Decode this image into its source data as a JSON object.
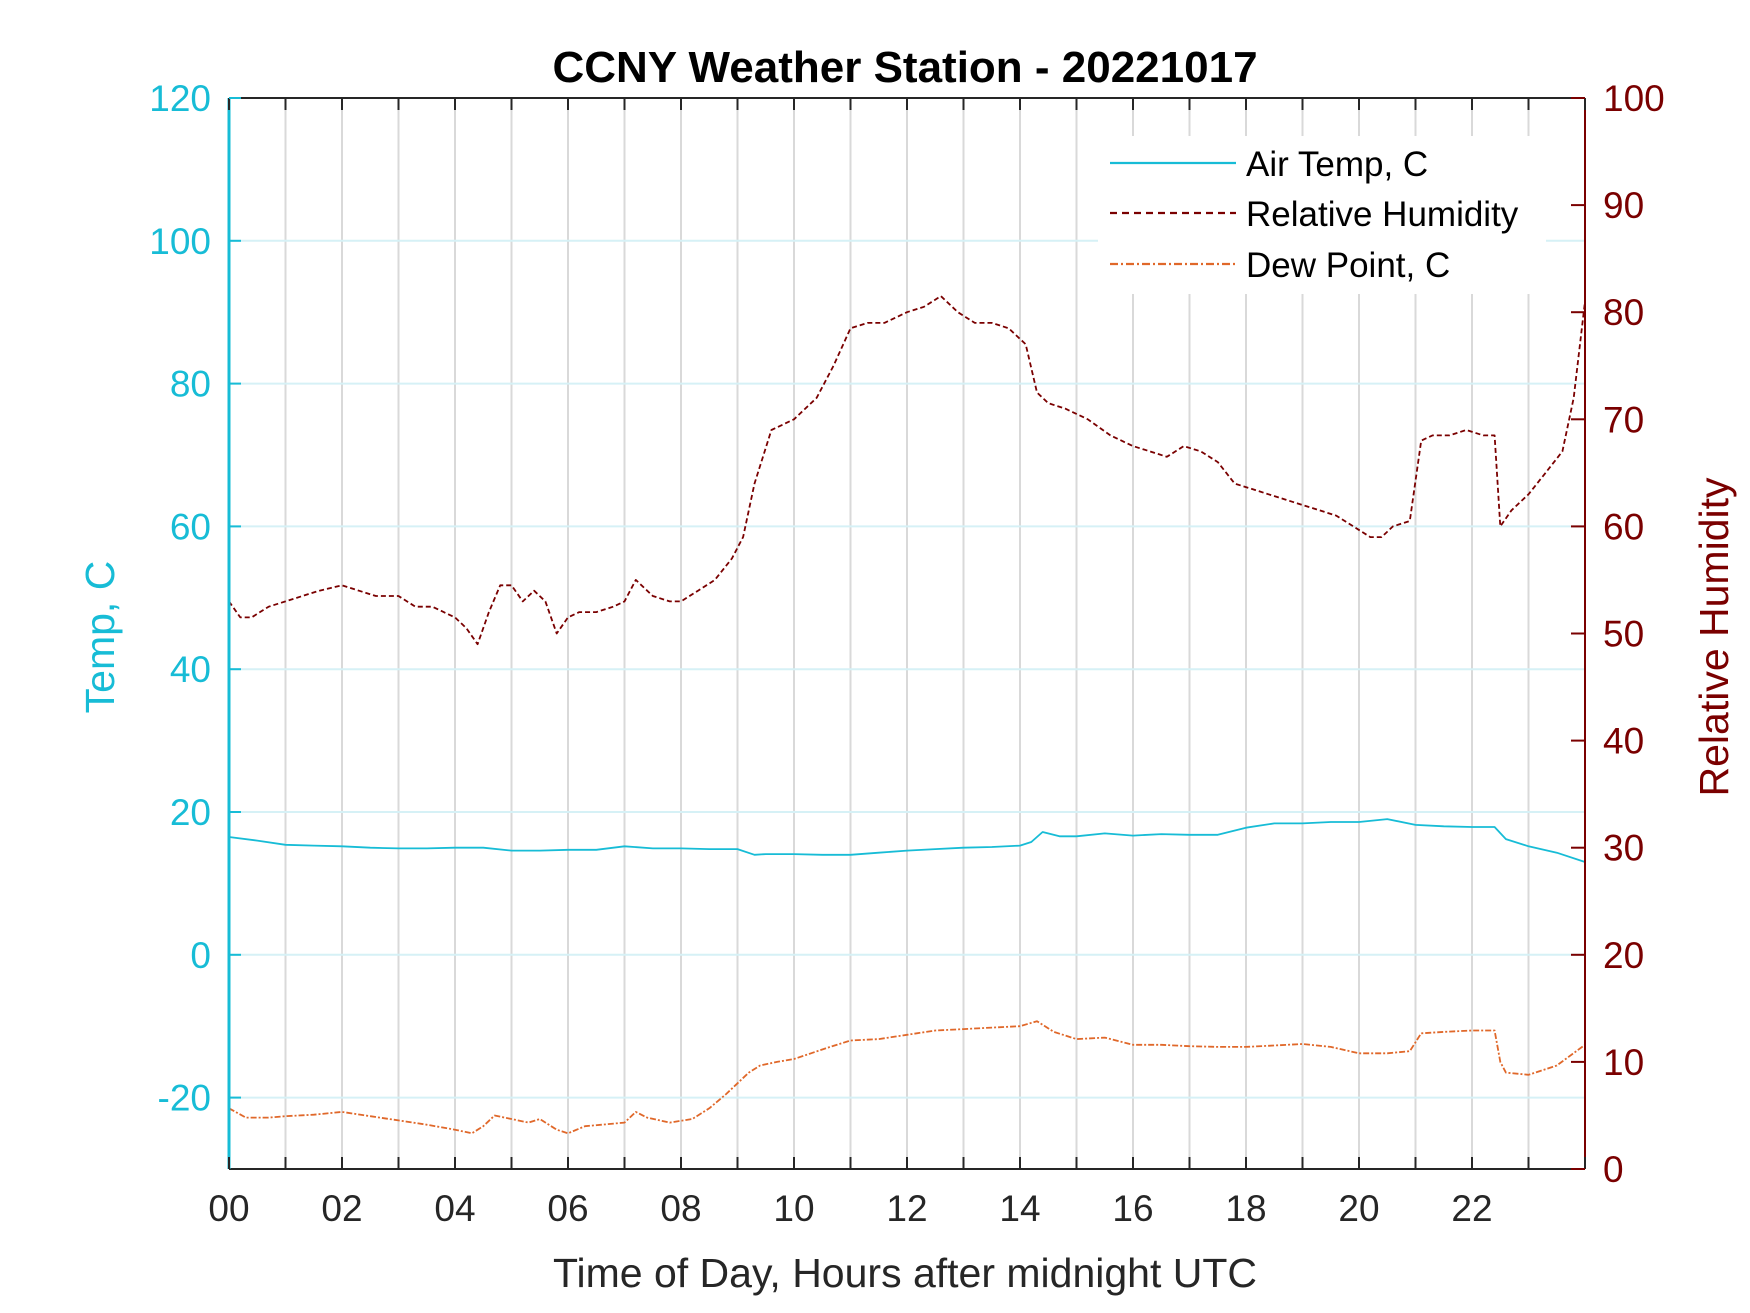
{
  "chart_data": {
    "type": "line",
    "title": "CCNY Weather Station - 20221017",
    "xlabel": "Time of Day, Hours after midnight UTC",
    "ylabel_left": "Temp, C",
    "ylabel_right": "Relative Humidity",
    "xlim": [
      0,
      24
    ],
    "ylim_left": [
      -30,
      120
    ],
    "ylim_right": [
      0,
      100
    ],
    "x_ticks": [
      "00",
      "02",
      "04",
      "06",
      "08",
      "10",
      "12",
      "14",
      "16",
      "18",
      "20",
      "22"
    ],
    "y_left_ticks": [
      "-20",
      "0",
      "20",
      "40",
      "60",
      "80",
      "100",
      "120"
    ],
    "y_right_ticks": [
      "0",
      "10",
      "20",
      "30",
      "40",
      "50",
      "60",
      "70",
      "80",
      "90",
      "100"
    ],
    "grid": "vertical lines every hour, horizontal lines at left-axis ticks",
    "legend_position": "top-right",
    "colors": {
      "air_temp": "#17bcd6",
      "relative_humidity": "#7a0000",
      "dew_point": "#e0682a",
      "right_axis": "#7a0000",
      "left_axis": "#17bcd6"
    },
    "series": [
      {
        "name": "Air Temp, C",
        "axis": "left",
        "style": "solid",
        "x": [
          0,
          0.5,
          1,
          1.5,
          2,
          2.5,
          3,
          3.5,
          4,
          4.5,
          5,
          5.5,
          6,
          6.5,
          7,
          7.5,
          8,
          8.5,
          9,
          9.3,
          9.5,
          10,
          10.5,
          11,
          11.5,
          12,
          12.5,
          13,
          13.5,
          14,
          14.2,
          14.4,
          14.7,
          15,
          15.5,
          16,
          16.5,
          17,
          17.5,
          18,
          18.5,
          19,
          19.5,
          20,
          20.5,
          21,
          21.5,
          22,
          22.4,
          22.6,
          23,
          23.5,
          24
        ],
        "y": [
          16.5,
          16.0,
          15.4,
          15.3,
          15.2,
          15.0,
          14.9,
          14.9,
          15.0,
          15.0,
          14.6,
          14.6,
          14.7,
          14.7,
          15.2,
          14.9,
          14.9,
          14.8,
          14.8,
          14.0,
          14.1,
          14.1,
          14.0,
          14.0,
          14.3,
          14.6,
          14.8,
          15.0,
          15.1,
          15.3,
          15.8,
          17.2,
          16.6,
          16.6,
          17.0,
          16.7,
          16.9,
          16.8,
          16.8,
          17.8,
          18.4,
          18.4,
          18.6,
          18.6,
          19.0,
          18.2,
          18.0,
          17.9,
          17.9,
          16.2,
          15.2,
          14.3,
          13.0
        ]
      },
      {
        "name": "Relative Humidity",
        "axis": "right",
        "style": "dashed",
        "x": [
          0,
          0.2,
          0.4,
          0.7,
          1,
          1.3,
          1.6,
          2,
          2.3,
          2.6,
          3,
          3.3,
          3.6,
          3.8,
          4,
          4.2,
          4.4,
          4.6,
          4.8,
          5,
          5.2,
          5.4,
          5.6,
          5.8,
          6,
          6.2,
          6.5,
          6.8,
          7,
          7.2,
          7.5,
          7.8,
          8,
          8.3,
          8.6,
          8.9,
          9.1,
          9.3,
          9.6,
          10,
          10.4,
          10.7,
          11,
          11.3,
          11.6,
          12,
          12.3,
          12.6,
          12.9,
          13.2,
          13.5,
          13.8,
          14.1,
          14.3,
          14.5,
          14.8,
          15.2,
          15.6,
          16,
          16.3,
          16.6,
          16.9,
          17.2,
          17.5,
          17.8,
          18.1,
          18.4,
          18.7,
          19,
          19.3,
          19.6,
          19.9,
          20.2,
          20.4,
          20.6,
          20.9,
          21.1,
          21.3,
          21.6,
          21.9,
          22.2,
          22.4,
          22.5,
          22.7,
          23,
          23.3,
          23.6,
          23.8,
          24
        ],
        "y": [
          53,
          51.5,
          51.5,
          52.5,
          53,
          53.5,
          54,
          54.5,
          54,
          53.5,
          53.5,
          52.5,
          52.5,
          52,
          51.5,
          50.5,
          49,
          52,
          54.5,
          54.5,
          53,
          54,
          53,
          50,
          51.5,
          52,
          52,
          52.5,
          53,
          55,
          53.5,
          53,
          53,
          54,
          55,
          57,
          59,
          64,
          69,
          70,
          72,
          75,
          78.5,
          79,
          79,
          80,
          80.5,
          81.5,
          80,
          79,
          79,
          78.5,
          77,
          72.5,
          71.5,
          71,
          70,
          68.5,
          67.5,
          67,
          66.5,
          67.5,
          67,
          66,
          64,
          63.5,
          63,
          62.5,
          62,
          61.5,
          61,
          60,
          59,
          59,
          60,
          60.5,
          68,
          68.5,
          68.5,
          69,
          68.5,
          68.5,
          60,
          61.5,
          63,
          65,
          67,
          72,
          81
        ]
      },
      {
        "name": "Dew Point, C",
        "axis": "left",
        "style": "dash-dot",
        "x": [
          0,
          0.3,
          0.7,
          1,
          1.5,
          2,
          2.5,
          3,
          3.5,
          4,
          4.3,
          4.5,
          4.7,
          5,
          5.3,
          5.5,
          5.8,
          6,
          6.3,
          6.6,
          7,
          7.2,
          7.4,
          7.8,
          8.2,
          8.5,
          8.8,
          9,
          9.2,
          9.4,
          9.7,
          10,
          10.3,
          10.6,
          11,
          11.5,
          12,
          12.5,
          13,
          13.5,
          14,
          14.3,
          14.6,
          15,
          15.5,
          16,
          16.5,
          17,
          17.5,
          18,
          18.5,
          19,
          19.5,
          20,
          20.5,
          20.9,
          21.1,
          21.5,
          22,
          22.4,
          22.5,
          22.6,
          23,
          23.5,
          24
        ],
        "y": [
          -21.5,
          -22.8,
          -22.8,
          -22.6,
          -22.4,
          -22.0,
          -22.6,
          -23.2,
          -23.8,
          -24.5,
          -25.0,
          -24.0,
          -22.5,
          -23.0,
          -23.5,
          -23.0,
          -24.5,
          -25.0,
          -24.0,
          -23.8,
          -23.5,
          -22.0,
          -22.8,
          -23.5,
          -23.0,
          -21.5,
          -19.5,
          -18.0,
          -16.5,
          -15.5,
          -15.0,
          -14.6,
          -13.8,
          -13.0,
          -12.0,
          -11.8,
          -11.2,
          -10.6,
          -10.4,
          -10.2,
          -10.0,
          -9.3,
          -10.8,
          -11.8,
          -11.6,
          -12.6,
          -12.6,
          -12.8,
          -12.9,
          -12.9,
          -12.7,
          -12.5,
          -12.9,
          -13.8,
          -13.8,
          -13.5,
          -11.0,
          -10.8,
          -10.6,
          -10.6,
          -15.0,
          -16.5,
          -16.8,
          -15.5,
          -12.6
        ]
      }
    ]
  }
}
